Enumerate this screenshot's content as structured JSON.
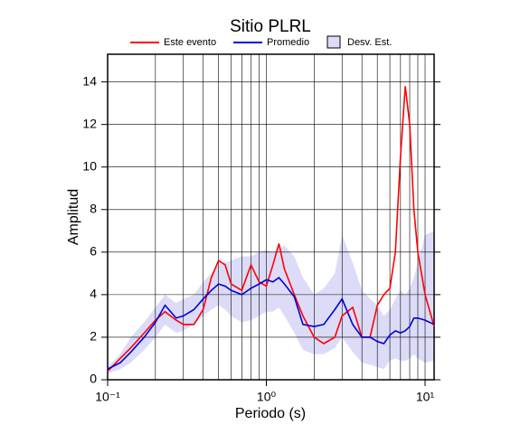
{
  "chart_data": {
    "type": "line",
    "title": "Sitio PLRL",
    "xlabel": "Periodo (s)",
    "ylabel": "Amplitud",
    "xscale": "log",
    "grid": true,
    "xlim": [
      0.1,
      11.4
    ],
    "ylim": [
      0,
      15.3
    ],
    "xticks": [
      {
        "value": 0.1,
        "label": "10⁻¹"
      },
      {
        "value": 1,
        "label": "10⁰"
      },
      {
        "value": 10,
        "label": "10¹"
      }
    ],
    "yticks": [
      0,
      2,
      4,
      6,
      8,
      10,
      12,
      14
    ],
    "x": [
      0.1,
      0.12,
      0.14,
      0.17,
      0.2,
      0.23,
      0.27,
      0.3,
      0.35,
      0.4,
      0.45,
      0.5,
      0.55,
      0.6,
      0.7,
      0.8,
      0.9,
      1.0,
      1.1,
      1.2,
      1.3,
      1.5,
      1.7,
      2.0,
      2.3,
      2.7,
      3.0,
      3.5,
      4.0,
      4.5,
      5.0,
      5.5,
      6.0,
      6.5,
      7.0,
      7.5,
      8.0,
      8.5,
      9.0,
      10,
      11.4
    ],
    "band": {
      "name": "Desv. Est.",
      "color": "#dcdcf8",
      "upper": [
        0.6,
        1.2,
        2.0,
        2.7,
        3.4,
        4.0,
        3.6,
        3.8,
        4.0,
        4.6,
        5.0,
        5.4,
        5.5,
        5.6,
        5.8,
        5.8,
        6.0,
        6.1,
        6.0,
        6.2,
        6.3,
        5.8,
        4.8,
        4.0,
        4.3,
        5.0,
        6.8,
        5.5,
        4.2,
        3.8,
        3.5,
        3.0,
        3.3,
        3.8,
        4.2,
        4.0,
        4.3,
        4.8,
        5.5,
        6.8,
        7.0
      ],
      "lower": [
        0.3,
        0.5,
        0.8,
        1.4,
        2.0,
        2.6,
        2.2,
        2.3,
        2.6,
        3.0,
        3.3,
        3.5,
        3.3,
        3.0,
        2.7,
        2.8,
        3.0,
        3.2,
        3.2,
        3.4,
        3.0,
        2.2,
        1.4,
        1.2,
        1.2,
        1.5,
        2.0,
        1.3,
        0.8,
        0.7,
        0.6,
        0.5,
        0.9,
        1.0,
        0.9,
        0.9,
        1.0,
        1.2,
        1.0,
        0.8,
        0.9
      ]
    },
    "series": [
      {
        "name": "Este evento",
        "color": "#ff0000",
        "values": [
          0.4,
          1.0,
          1.5,
          2.2,
          2.8,
          3.2,
          2.8,
          2.6,
          2.6,
          3.3,
          4.8,
          5.6,
          5.4,
          4.5,
          4.2,
          5.4,
          4.6,
          4.4,
          5.4,
          6.4,
          5.2,
          4.0,
          3.0,
          2.0,
          1.7,
          2.0,
          3.0,
          3.4,
          2.0,
          2.0,
          3.5,
          4.0,
          4.3,
          6.0,
          10.5,
          13.8,
          12.0,
          8.0,
          6.0,
          4.0,
          2.5
        ]
      },
      {
        "name": "Promedio",
        "color": "#0000dd",
        "values": [
          0.5,
          0.8,
          1.3,
          2.0,
          2.7,
          3.5,
          2.9,
          3.0,
          3.3,
          3.8,
          4.2,
          4.5,
          4.4,
          4.2,
          4.0,
          4.3,
          4.5,
          4.7,
          4.6,
          4.8,
          4.5,
          3.9,
          2.6,
          2.5,
          2.6,
          3.3,
          3.8,
          2.6,
          2.0,
          2.0,
          1.8,
          1.7,
          2.1,
          2.3,
          2.2,
          2.3,
          2.5,
          2.9,
          2.9,
          2.8,
          2.6
        ]
      }
    ]
  }
}
